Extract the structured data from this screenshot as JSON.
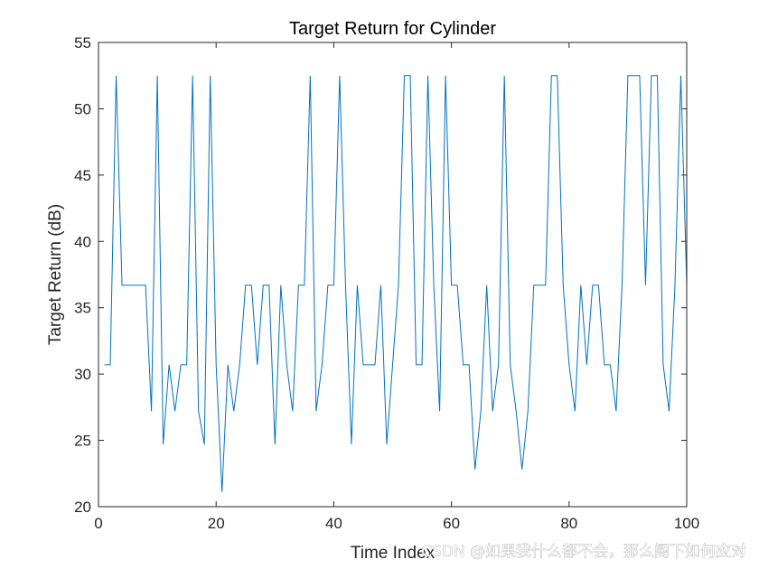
{
  "chart_data": {
    "type": "line",
    "title": "Target Return for Cylinder",
    "xlabel": "Time Index",
    "ylabel": "Target Return (dB)",
    "xlim": [
      0,
      100
    ],
    "ylim": [
      20,
      55
    ],
    "xticks": [
      0,
      20,
      40,
      60,
      80,
      100
    ],
    "yticks": [
      20,
      25,
      30,
      35,
      40,
      45,
      50,
      55
    ],
    "grid": false,
    "line_color": "#0072BD",
    "series": [
      {
        "x": [
          1,
          2,
          3,
          4,
          5,
          6,
          7,
          8,
          9,
          10,
          11,
          12,
          13,
          14,
          15,
          16,
          17,
          18,
          19,
          20,
          21,
          22,
          23,
          24,
          25,
          26,
          27,
          28,
          29,
          30,
          31,
          32,
          33,
          34,
          35,
          36,
          37,
          38,
          39,
          40,
          41,
          42,
          43,
          44,
          45,
          46,
          47,
          48,
          49,
          50,
          51,
          52,
          53,
          54,
          55,
          56,
          57,
          58,
          59,
          60,
          61,
          62,
          63,
          64,
          65,
          66,
          67,
          68,
          69,
          70,
          71,
          72,
          73,
          74,
          75,
          76,
          77,
          78,
          79,
          80,
          81,
          82,
          83,
          84,
          85,
          86,
          87,
          88,
          89,
          90,
          91,
          92,
          93,
          94,
          95,
          96,
          97,
          98,
          99,
          100
        ],
        "values": [
          30.7,
          30.7,
          52.5,
          36.7,
          36.7,
          36.7,
          36.7,
          36.7,
          27.2,
          52.5,
          24.7,
          30.7,
          27.2,
          30.7,
          30.7,
          52.5,
          27.2,
          24.7,
          52.5,
          30.7,
          21.1,
          30.7,
          27.2,
          30.7,
          36.7,
          36.7,
          30.7,
          36.7,
          36.7,
          24.7,
          36.7,
          30.7,
          27.2,
          36.7,
          36.7,
          52.5,
          27.2,
          30.7,
          36.7,
          36.7,
          52.5,
          36.7,
          24.7,
          36.7,
          30.7,
          30.7,
          30.7,
          36.7,
          24.7,
          30.7,
          36.7,
          52.5,
          52.5,
          30.7,
          30.7,
          52.5,
          36.7,
          27.2,
          52.5,
          36.7,
          36.7,
          30.7,
          30.7,
          22.8,
          27.2,
          36.7,
          27.2,
          30.7,
          52.5,
          30.7,
          27.2,
          22.8,
          27.2,
          36.7,
          36.7,
          36.7,
          52.5,
          52.5,
          36.7,
          30.7,
          27.2,
          36.7,
          30.7,
          36.7,
          36.7,
          30.7,
          30.7,
          27.2,
          36.7,
          52.5,
          52.5,
          52.5,
          36.7,
          52.5,
          52.5,
          30.7,
          27.2,
          36.7,
          52.5,
          36.7
        ]
      }
    ]
  },
  "watermark": "CSDN @如果我什么都不会，那么阁下如何应对"
}
